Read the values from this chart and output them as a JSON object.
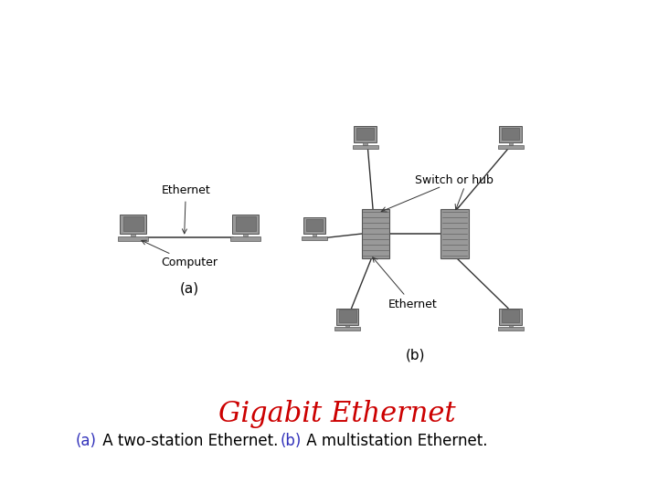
{
  "title": "Gigabit Ethernet",
  "title_color": "#cc0000",
  "title_fontsize": 22,
  "title_fontstyle": "italic",
  "bg_color": "#ffffff",
  "label_a": "(a)",
  "label_b": "(b)",
  "label_fontsize": 11,
  "diagram_label_fontsize": 9,
  "caption_parts": [
    {
      "text": "(a)",
      "color": "#3333bb"
    },
    {
      "text": " A two-station Ethernet. ",
      "color": "#000000"
    },
    {
      "text": "(b)",
      "color": "#3333bb"
    },
    {
      "text": " A multistation Ethernet.",
      "color": "#000000"
    }
  ],
  "caption_fontsize": 12,
  "comp_color": "#999999",
  "comp_dark": "#555555",
  "comp_screen": "#777777",
  "switch_color": "#aaaaaa",
  "line_color": "#333333"
}
